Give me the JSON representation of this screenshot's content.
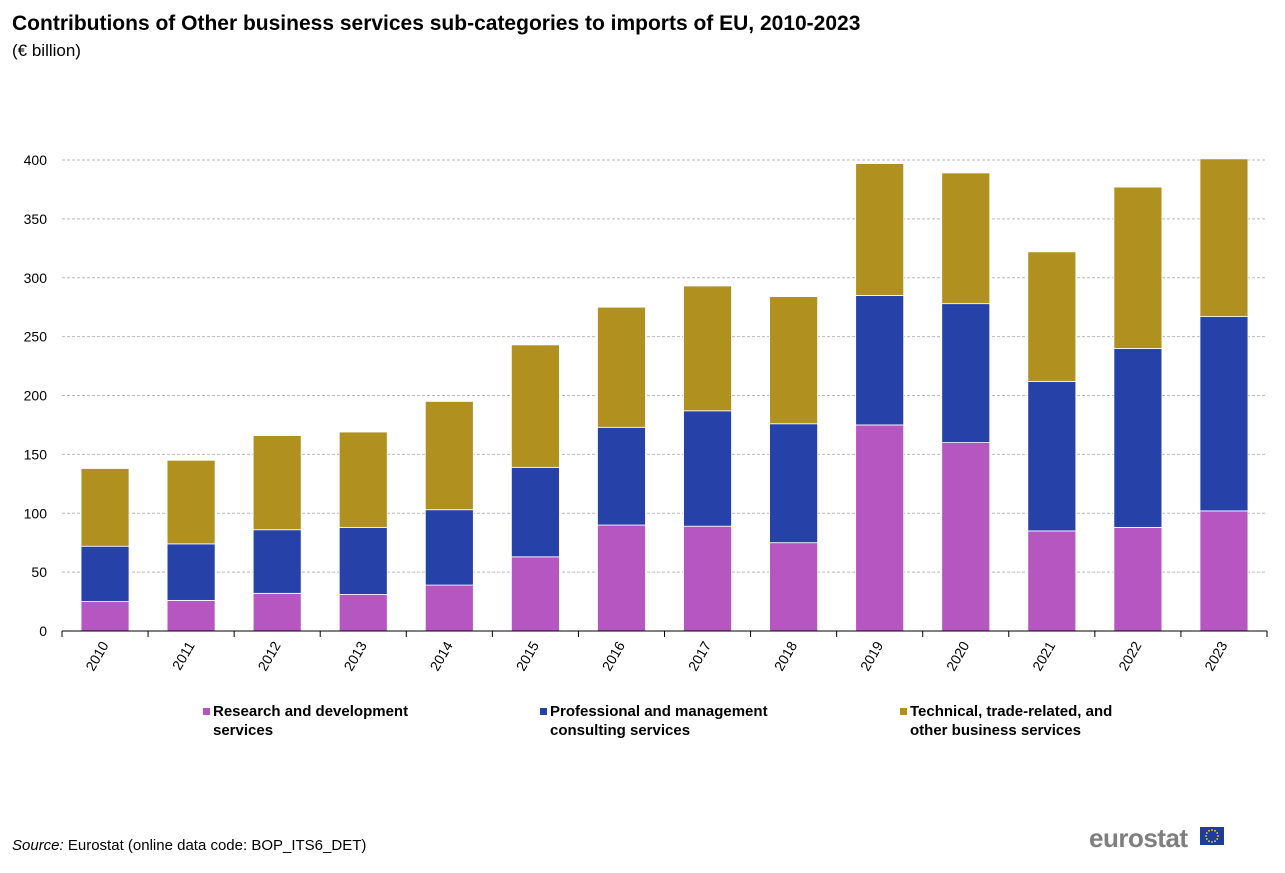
{
  "header": {
    "title": "Contributions of Other business services sub-categories to imports of EU, 2010-2023",
    "subtitle": "(€ billion)"
  },
  "chart_data": {
    "type": "bar",
    "stacked": true,
    "categories": [
      "2010",
      "2011",
      "2012",
      "2013",
      "2014",
      "2015",
      "2016",
      "2017",
      "2018",
      "2019",
      "2020",
      "2021",
      "2022",
      "2023"
    ],
    "series": [
      {
        "name": "Research and development services",
        "color": "#b657c1",
        "values": [
          25,
          26,
          32,
          31,
          39,
          63,
          90,
          89,
          75,
          175,
          160,
          85,
          88,
          102
        ]
      },
      {
        "name": "Professional and management consulting services",
        "color": "#2642a8",
        "values": [
          47,
          48,
          54,
          57,
          64,
          76,
          83,
          98,
          101,
          110,
          118,
          127,
          152,
          165
        ]
      },
      {
        "name": "Technical, trade-related, and other business services",
        "color": "#b09120",
        "values": [
          66,
          71,
          80,
          81,
          92,
          104,
          102,
          106,
          108,
          112,
          111,
          110,
          137,
          134
        ]
      }
    ],
    "yticks": [
      0,
      50,
      100,
      150,
      200,
      250,
      300,
      350,
      400
    ],
    "ylim": [
      0,
      400
    ],
    "grid": "horizontal-dashed",
    "legend_position": "bottom"
  },
  "legend": [
    {
      "line1": "Research and development",
      "line2": "services"
    },
    {
      "line1": "Professional and management",
      "line2": "consulting services"
    },
    {
      "line1": "Technical, trade-related, and",
      "line2": "other business services"
    }
  ],
  "footer": {
    "source_label": "Source:",
    "source_text": "Eurostat (online data code: BOP_ITS6_DET)",
    "logo": "eurostat"
  }
}
